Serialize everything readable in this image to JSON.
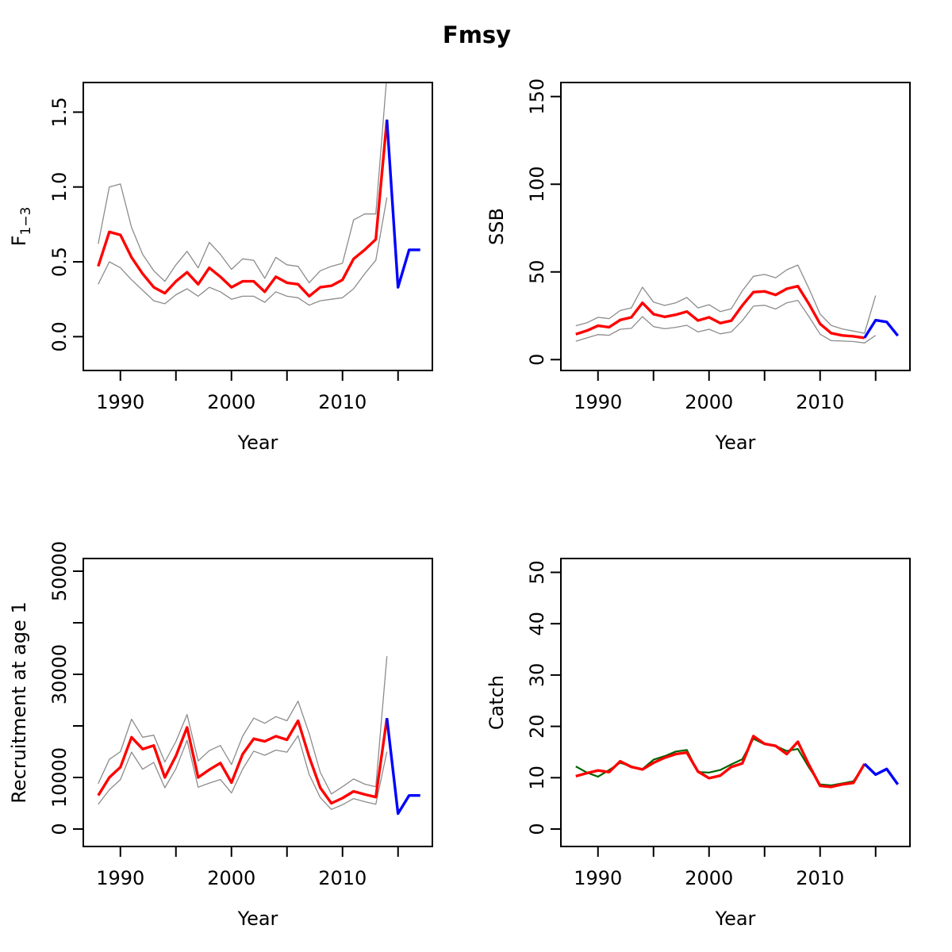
{
  "figure": {
    "title": "Fmsy"
  },
  "colors": {
    "estimate": "#ff0000",
    "forecast": "#0000ff",
    "confidence": "#8c8c8c",
    "observed": "#006400",
    "axis": "#000000"
  },
  "chart_data": [
    {
      "id": "fbar",
      "type": "line",
      "xlabel": "Year",
      "ylabel": "F",
      "ylabel_sub": "1−3",
      "xlim": [
        1986.66,
        2018.09
      ],
      "ylim": [
        -0.226,
        1.698
      ],
      "x_tick_values": [
        1990,
        1995,
        2000,
        2005,
        2010,
        2015
      ],
      "x_tick_labels": [
        "1990",
        "",
        "2000",
        "",
        "2010",
        ""
      ],
      "y_tick_values": [
        0,
        0.5,
        1.0,
        1.5
      ],
      "y_tick_labels": [
        "0.0",
        "0.5",
        "1.0",
        "1.5"
      ],
      "grid": false,
      "legend": "none",
      "series": [
        {
          "name": "ci-upper",
          "role": "confidence",
          "years": [
            1988,
            1989,
            1990,
            1991,
            1992,
            1993,
            1994,
            1995,
            1996,
            1997,
            1998,
            1999,
            2000,
            2001,
            2002,
            2003,
            2004,
            2005,
            2006,
            2007,
            2008,
            2009,
            2010,
            2011,
            2012,
            2013,
            2014
          ],
          "values": [
            0.62,
            1.0,
            1.02,
            0.73,
            0.55,
            0.44,
            0.37,
            0.48,
            0.57,
            0.46,
            0.63,
            0.55,
            0.45,
            0.52,
            0.51,
            0.39,
            0.53,
            0.48,
            0.47,
            0.36,
            0.44,
            0.47,
            0.49,
            0.78,
            0.82,
            0.82,
            1.75
          ]
        },
        {
          "name": "ci-lower",
          "role": "confidence",
          "years": [
            1988,
            1989,
            1990,
            1991,
            1992,
            1993,
            1994,
            1995,
            1996,
            1997,
            1998,
            1999,
            2000,
            2001,
            2002,
            2003,
            2004,
            2005,
            2006,
            2007,
            2008,
            2009,
            2010,
            2011,
            2012,
            2013,
            2014
          ],
          "values": [
            0.35,
            0.5,
            0.46,
            0.38,
            0.31,
            0.24,
            0.22,
            0.28,
            0.32,
            0.27,
            0.33,
            0.3,
            0.25,
            0.27,
            0.27,
            0.23,
            0.3,
            0.27,
            0.26,
            0.21,
            0.24,
            0.25,
            0.26,
            0.32,
            0.42,
            0.51,
            0.93
          ]
        },
        {
          "name": "estimate",
          "role": "estimate",
          "years": [
            1988,
            1989,
            1990,
            1991,
            1992,
            1993,
            1994,
            1995,
            1996,
            1997,
            1998,
            1999,
            2000,
            2001,
            2002,
            2003,
            2004,
            2005,
            2006,
            2007,
            2008,
            2009,
            2010,
            2011,
            2012,
            2013,
            2014
          ],
          "values": [
            0.47,
            0.7,
            0.68,
            0.53,
            0.42,
            0.33,
            0.29,
            0.37,
            0.43,
            0.35,
            0.46,
            0.4,
            0.33,
            0.37,
            0.37,
            0.3,
            0.4,
            0.36,
            0.35,
            0.27,
            0.33,
            0.34,
            0.38,
            0.52,
            0.58,
            0.65,
            1.45
          ]
        },
        {
          "name": "forecast",
          "role": "forecast",
          "years": [
            2014,
            2015,
            2016,
            2017
          ],
          "values": [
            1.45,
            0.33,
            0.58,
            0.58
          ]
        }
      ]
    },
    {
      "id": "ssb",
      "type": "line",
      "xlabel": "Year",
      "ylabel": "SSB",
      "xlim": [
        1986.66,
        2018.09
      ],
      "ylim": [
        -6.2,
        158.0
      ],
      "x_tick_values": [
        1990,
        1995,
        2000,
        2005,
        2010,
        2015
      ],
      "x_tick_labels": [
        "1990",
        "",
        "2000",
        "",
        "2010",
        ""
      ],
      "y_tick_values": [
        0,
        50,
        100,
        150
      ],
      "y_tick_labels": [
        "0",
        "50",
        "100",
        "150"
      ],
      "grid": false,
      "legend": "none",
      "series": [
        {
          "name": "ci-upper",
          "role": "confidence",
          "years": [
            1988,
            1989,
            1990,
            1991,
            1992,
            1993,
            1994,
            1995,
            1996,
            1997,
            1998,
            1999,
            2000,
            2001,
            2002,
            2003,
            2004,
            2005,
            2006,
            2007,
            2008,
            2009,
            2010,
            2011,
            2012,
            2013,
            2014,
            2015
          ],
          "values": [
            19.3,
            21.0,
            24.1,
            23.4,
            28.0,
            29.5,
            41.3,
            32.8,
            30.9,
            32.4,
            35.4,
            29.5,
            31.3,
            27.4,
            29.0,
            39.2,
            47.5,
            48.6,
            46.7,
            51.2,
            53.9,
            40.5,
            26.0,
            19.5,
            17.5,
            16.3,
            15.0,
            36.5
          ]
        },
        {
          "name": "ci-lower",
          "role": "confidence",
          "years": [
            1988,
            1989,
            1990,
            1991,
            1992,
            1993,
            1994,
            1995,
            1996,
            1997,
            1998,
            1999,
            2000,
            2001,
            2002,
            2003,
            2004,
            2005,
            2006,
            2007,
            2008,
            2009,
            2010,
            2011,
            2012,
            2013,
            2014,
            2015
          ],
          "values": [
            10.5,
            12.4,
            14.3,
            13.9,
            17.3,
            17.8,
            24.5,
            18.8,
            17.6,
            18.4,
            19.6,
            15.8,
            17.3,
            14.7,
            15.8,
            22.2,
            30.5,
            31.0,
            28.8,
            32.4,
            33.8,
            24.5,
            14.5,
            10.8,
            10.6,
            10.3,
            9.5,
            13.8
          ]
        },
        {
          "name": "estimate",
          "role": "estimate",
          "years": [
            1988,
            1989,
            1990,
            1991,
            1992,
            1993,
            1994,
            1995,
            1996,
            1997,
            1998,
            1999,
            2000,
            2001,
            2002,
            2003,
            2004,
            2005,
            2006,
            2007,
            2008,
            2009,
            2010,
            2011,
            2012,
            2013,
            2014
          ],
          "values": [
            14.5,
            16.5,
            19.3,
            18.5,
            22.6,
            24.1,
            32.4,
            25.9,
            24.4,
            25.6,
            27.4,
            22.3,
            24.1,
            20.8,
            22.2,
            30.9,
            38.5,
            38.9,
            36.9,
            40.4,
            41.9,
            31.7,
            20.4,
            15.1,
            13.8,
            13.3,
            12.4
          ]
        },
        {
          "name": "forecast",
          "role": "forecast",
          "years": [
            2014,
            2015,
            2016,
            2017
          ],
          "values": [
            12.4,
            22.5,
            21.5,
            13.6
          ]
        }
      ]
    },
    {
      "id": "recruitment",
      "type": "line",
      "xlabel": "Year",
      "ylabel": "Recruitment at age 1",
      "xlim": [
        1986.66,
        2018.09
      ],
      "ylim": [
        -3385,
        52460
      ],
      "x_tick_values": [
        1990,
        1995,
        2000,
        2005,
        2010,
        2015
      ],
      "x_tick_labels": [
        "1990",
        "",
        "2000",
        "",
        "2010",
        ""
      ],
      "y_tick_values": [
        0,
        10000,
        20000,
        30000,
        40000,
        50000
      ],
      "y_tick_labels": [
        "0",
        "10000",
        "",
        "30000",
        "",
        "50000"
      ],
      "grid": false,
      "legend": "none",
      "series": [
        {
          "name": "ci-upper",
          "role": "confidence",
          "years": [
            1988,
            1989,
            1990,
            1991,
            1992,
            1993,
            1994,
            1995,
            1996,
            1997,
            1998,
            1999,
            2000,
            2001,
            2002,
            2003,
            2004,
            2005,
            2006,
            2007,
            2008,
            2009,
            2010,
            2011,
            2012,
            2013,
            2014
          ],
          "values": [
            8800,
            13500,
            15000,
            21300,
            17800,
            18200,
            13000,
            17000,
            22200,
            13200,
            15200,
            16200,
            12500,
            18000,
            21500,
            20500,
            21800,
            21000,
            24800,
            18500,
            11000,
            6800,
            8200,
            9700,
            8700,
            8200,
            33500
          ]
        },
        {
          "name": "ci-lower",
          "role": "confidence",
          "years": [
            1988,
            1989,
            1990,
            1991,
            1992,
            1993,
            1994,
            1995,
            1996,
            1997,
            1998,
            1999,
            2000,
            2001,
            2002,
            2003,
            2004,
            2005,
            2006,
            2007,
            2008,
            2009,
            2010,
            2011,
            2012,
            2013,
            2014
          ],
          "values": [
            4800,
            7600,
            9600,
            14900,
            11600,
            12900,
            8000,
            11700,
            17200,
            8100,
            8900,
            9600,
            7000,
            11600,
            15100,
            14300,
            15300,
            14900,
            18100,
            10600,
            6100,
            3800,
            4700,
            5900,
            5300,
            4800,
            15000
          ]
        },
        {
          "name": "estimate",
          "role": "estimate",
          "years": [
            1988,
            1989,
            1990,
            1991,
            1992,
            1993,
            1994,
            1995,
            1996,
            1997,
            1998,
            1999,
            2000,
            2001,
            2002,
            2003,
            2004,
            2005,
            2006,
            2007,
            2008,
            2009,
            2010,
            2011,
            2012,
            2013,
            2014
          ],
          "values": [
            6500,
            10000,
            12000,
            17800,
            15500,
            16200,
            10000,
            14200,
            19700,
            10000,
            11500,
            12800,
            9000,
            14500,
            17500,
            17000,
            18000,
            17300,
            21000,
            14000,
            8000,
            5000,
            6000,
            7300,
            6700,
            6200,
            21500
          ]
        },
        {
          "name": "forecast",
          "role": "forecast",
          "years": [
            2014,
            2015,
            2016,
            2017
          ],
          "values": [
            21500,
            3000,
            6500,
            6500
          ]
        }
      ]
    },
    {
      "id": "catch",
      "type": "line",
      "xlabel": "Year",
      "ylabel": "Catch",
      "xlim": [
        1986.66,
        2018.09
      ],
      "ylim": [
        -3.4,
        52.7
      ],
      "x_tick_values": [
        1990,
        1995,
        2000,
        2005,
        2010,
        2015
      ],
      "x_tick_labels": [
        "1990",
        "",
        "2000",
        "",
        "2010",
        ""
      ],
      "y_tick_values": [
        0,
        10,
        20,
        30,
        40,
        50
      ],
      "y_tick_labels": [
        "0",
        "10",
        "20",
        "30",
        "40",
        "50"
      ],
      "grid": false,
      "legend": "none",
      "series": [
        {
          "name": "observed",
          "role": "observed",
          "years": [
            1988,
            1989,
            1990,
            1991,
            1992,
            1993,
            1994,
            1995,
            1996,
            1997,
            1998,
            1999,
            2000,
            2001,
            2002,
            2003,
            2004,
            2005,
            2006,
            2007,
            2008,
            2009,
            2010,
            2011,
            2012,
            2013,
            2014
          ],
          "values": [
            12.2,
            11.0,
            10.2,
            11.5,
            12.9,
            12.2,
            11.7,
            13.5,
            14.2,
            15.1,
            15.4,
            11.1,
            11.0,
            11.5,
            12.6,
            13.6,
            17.6,
            16.5,
            16.2,
            15.2,
            15.6,
            12.0,
            8.7,
            8.5,
            8.9,
            9.3,
            12.5
          ]
        },
        {
          "name": "estimate",
          "role": "estimate",
          "years": [
            1988,
            1989,
            1990,
            1991,
            1992,
            1993,
            1994,
            1995,
            1996,
            1997,
            1998,
            1999,
            2000,
            2001,
            2002,
            2003,
            2004,
            2005,
            2006,
            2007,
            2008,
            2009,
            2010,
            2011,
            2012,
            2013,
            2014
          ],
          "values": [
            10.3,
            10.9,
            11.4,
            11.1,
            13.2,
            12.1,
            11.6,
            12.9,
            13.9,
            14.6,
            14.9,
            11.2,
            9.9,
            10.4,
            12.1,
            12.8,
            18.1,
            16.6,
            16.2,
            14.6,
            17.0,
            12.5,
            8.4,
            8.2,
            8.7,
            9.0,
            12.7
          ]
        },
        {
          "name": "forecast",
          "role": "forecast",
          "years": [
            2014,
            2015,
            2016,
            2017
          ],
          "values": [
            12.7,
            10.6,
            11.7,
            8.7
          ]
        }
      ]
    }
  ]
}
